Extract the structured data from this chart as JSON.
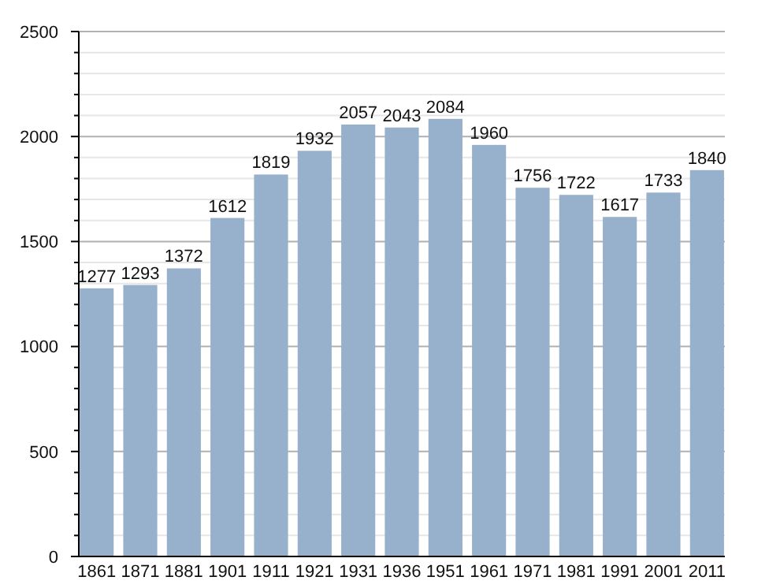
{
  "chart_data": {
    "type": "bar",
    "categories": [
      "1861",
      "1871",
      "1881",
      "1901",
      "1911",
      "1921",
      "1931",
      "1936",
      "1951",
      "1961",
      "1971",
      "1981",
      "1991",
      "2001",
      "2011"
    ],
    "values": [
      1277,
      1293,
      1372,
      1612,
      1819,
      1932,
      2057,
      2043,
      2084,
      1960,
      1756,
      1722,
      1617,
      1733,
      1840
    ],
    "color": "#97b0cb",
    "ylim": [
      0,
      2500
    ],
    "yticks": [
      0,
      {
        "value": 100,
        "label": null
      },
      {
        "value": 200,
        "label": null
      },
      {
        "value": 300,
        "label": null
      },
      {
        "value": 400,
        "label": null
      },
      500,
      {
        "value": 600,
        "label": null
      },
      {
        "value": 700,
        "label": null
      },
      {
        "value": 800,
        "label": null
      },
      {
        "value": 900,
        "label": null
      },
      1000,
      {
        "value": 1100,
        "label": null
      },
      {
        "value": 1200,
        "label": null
      },
      {
        "value": 1300,
        "label": null
      },
      {
        "value": 1400,
        "label": null
      },
      1500,
      {
        "value": 1600,
        "label": null
      },
      {
        "value": 1700,
        "label": null
      },
      {
        "value": 1800,
        "label": null
      },
      {
        "value": 1900,
        "label": null
      },
      2000,
      {
        "value": 2100,
        "label": null
      },
      {
        "value": 2200,
        "label": null
      },
      {
        "value": 2300,
        "label": null
      },
      {
        "value": 2400,
        "label": null
      },
      2500
    ],
    "grid": "y",
    "data_labels": true
  }
}
